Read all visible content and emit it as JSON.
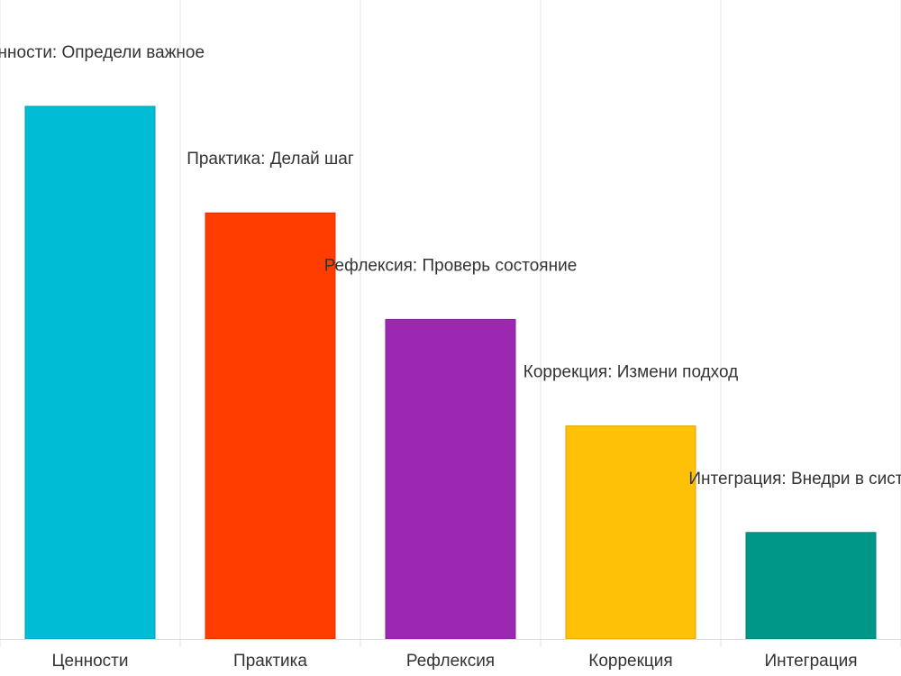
{
  "chart_data": {
    "type": "bar",
    "title": "",
    "xlabel": "",
    "ylabel": "",
    "categories": [
      "Ценности",
      "Практика",
      "Рефлексия",
      "Коррекция",
      "Интеграция"
    ],
    "values": [
      5,
      4,
      3,
      2,
      1
    ],
    "data_labels": [
      "Ценности: Определи важное",
      "Практика: Делай шаг",
      "Рефлексия: Проверь состояние",
      "Коррекция: Измени подход",
      "Интеграция: Внедри в систему"
    ],
    "colors": [
      "#00BCD4",
      "#FF3D00",
      "#9C27B0",
      "#FFC107",
      "#009688"
    ],
    "ylim": [
      0,
      5
    ],
    "grid": true,
    "legend": "none"
  }
}
